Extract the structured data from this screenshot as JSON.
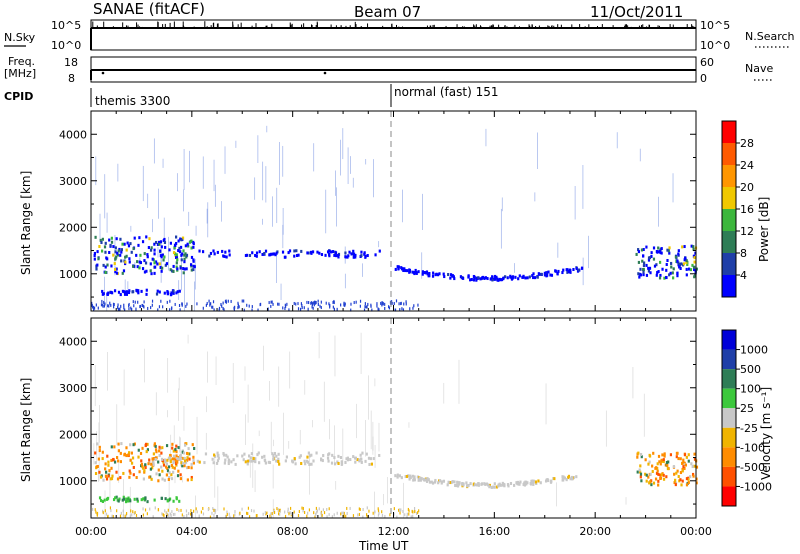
{
  "header": {
    "title": "SANAE (fitACF)",
    "beam": "Beam 07",
    "date": "11/Oct/2011"
  },
  "top_panels": {
    "nsky_label": "N.Sky",
    "nsearch_label": "N.Search",
    "nave_label": "Nave",
    "freq_label_1": "Freq.",
    "freq_label_2": "[MHz]",
    "cpid_label": "CPID",
    "nsky_ticks": [
      "10^5",
      "10^0"
    ],
    "nsearch_ticks": [
      "10^5",
      "10^0"
    ],
    "freq_ticks": [
      "18",
      "8"
    ],
    "nave_ticks": [
      "60",
      "0"
    ],
    "cpid_segments": [
      "themis 3300",
      "normal (fast) 151"
    ]
  },
  "colors": {
    "power": [
      "#0000ff",
      "#1f3fa8",
      "#2e7d56",
      "#3cb63c",
      "#f0c800",
      "#ff9600",
      "#ff5a00",
      "#ff0000"
    ],
    "velocity": [
      "#0000d8",
      "#1f3fa8",
      "#2e7d56",
      "#3cc83c",
      "#c8c8c8",
      "#f0b400",
      "#ff8c00",
      "#ff5000",
      "#ff0000"
    ]
  },
  "chart_data": [
    {
      "type": "heatmap",
      "title": "Power",
      "ylabel": "Slant Range [km]",
      "xlabel": "Time UT",
      "xlim": [
        "00:00",
        "24:00"
      ],
      "ylim": [
        200,
        4500
      ],
      "y_ticks": [
        "1000",
        "2000",
        "3000",
        "4000"
      ],
      "x_ticks": [
        "00:00",
        "04:00",
        "08:00",
        "12:00",
        "16:00",
        "20:00",
        "00:00"
      ],
      "colorbar": {
        "label": "Power [dB]",
        "ticks": [
          "4",
          "8",
          "12",
          "16",
          "20",
          "24",
          "28"
        ],
        "range": [
          0,
          30
        ]
      },
      "features": [
        {
          "x": [
            0.1,
            4.1
          ],
          "y": [
            1000,
            1800
          ],
          "level": "high"
        },
        {
          "x": [
            4.1,
            11.5
          ],
          "y": [
            1350,
            1500
          ],
          "level": "low"
        },
        {
          "x": [
            12.0,
            19.5
          ],
          "y": [
            900,
            1200
          ],
          "level": "low"
        },
        {
          "x": [
            21.6,
            24.0
          ],
          "y": [
            900,
            1600
          ],
          "level": "high"
        },
        {
          "x": [
            0.3,
            3.5
          ],
          "y": [
            550,
            650
          ],
          "level": "low"
        }
      ]
    },
    {
      "type": "heatmap",
      "title": "Velocity",
      "ylabel": "Slant Range [km]",
      "xlabel": "Time UT",
      "xlim": [
        "00:00",
        "24:00"
      ],
      "ylim": [
        200,
        4500
      ],
      "y_ticks": [
        "1000",
        "2000",
        "3000",
        "4000"
      ],
      "x_ticks": [
        "00:00",
        "04:00",
        "08:00",
        "12:00",
        "16:00",
        "20:00",
        "00:00"
      ],
      "colorbar": {
        "label": "Velocity [m s⁻¹]",
        "ticks": [
          "1000",
          "500",
          "100",
          "25",
          "-25",
          "-100",
          "-500",
          "-1000"
        ],
        "range": [
          -1000,
          1000
        ]
      },
      "features": [
        {
          "x": [
            0.1,
            4.1
          ],
          "y": [
            1000,
            1800
          ],
          "level": "negative"
        },
        {
          "x": [
            2.5,
            11.5
          ],
          "y": [
            1350,
            1600
          ],
          "level": "near-zero"
        },
        {
          "x": [
            12.0,
            19.5
          ],
          "y": [
            900,
            1200
          ],
          "level": "near-zero"
        },
        {
          "x": [
            21.6,
            24.0
          ],
          "y": [
            900,
            1600
          ],
          "level": "negative"
        },
        {
          "x": [
            0.3,
            3.5
          ],
          "y": [
            550,
            650
          ],
          "level": "positive"
        }
      ]
    }
  ]
}
